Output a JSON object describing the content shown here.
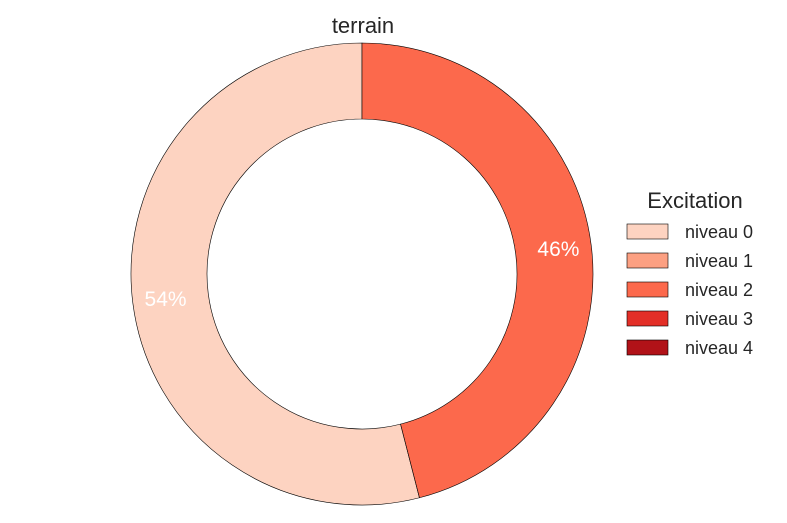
{
  "chart_data": {
    "type": "pie",
    "donut": true,
    "title": "terrain",
    "slices": [
      {
        "label": "niveau 0",
        "value": 54,
        "pct_label": "54%",
        "color": "#fdd3c1"
      },
      {
        "label": "niveau 2",
        "value": 46,
        "pct_label": "46%",
        "color": "#fc694c"
      }
    ],
    "legend": {
      "title": "Excitation",
      "placement": "right",
      "entries": [
        {
          "label": "niveau 0",
          "color": "#fdd3c1"
        },
        {
          "label": "niveau 1",
          "color": "#fca082"
        },
        {
          "label": "niveau 2",
          "color": "#fc694c"
        },
        {
          "label": "niveau 3",
          "color": "#e32f27"
        },
        {
          "label": "niveau 4",
          "color": "#b11218"
        }
      ]
    }
  }
}
